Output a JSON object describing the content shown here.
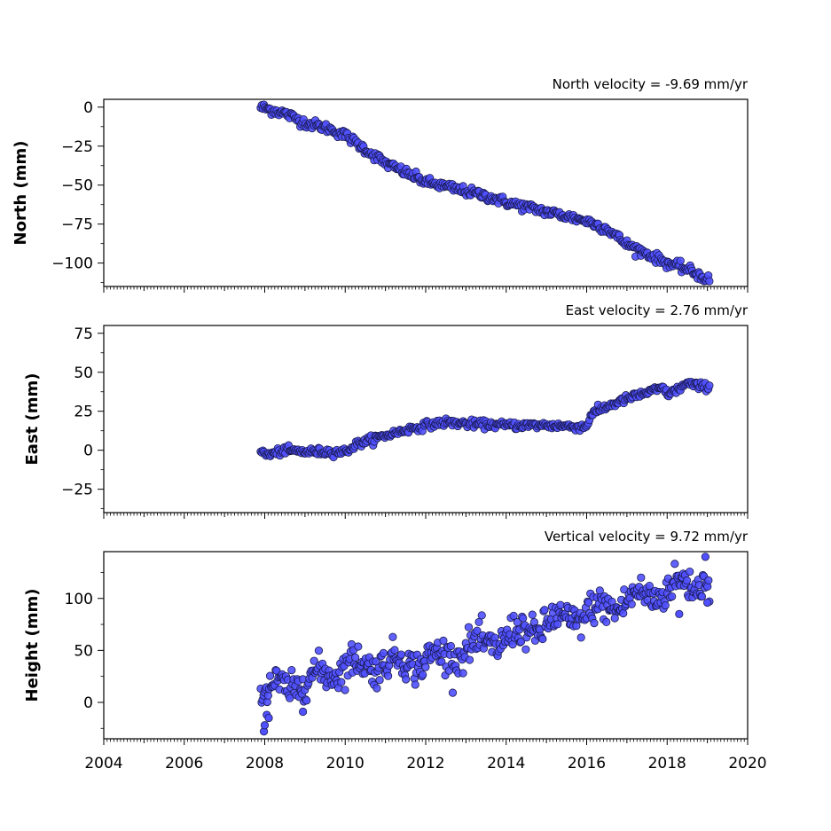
{
  "chart_data": [
    {
      "type": "scatter",
      "panel": "north",
      "title": "North velocity = -9.69 mm/yr",
      "ylabel": "North (mm)",
      "xlim": [
        2004,
        2020
      ],
      "ylim": [
        -115,
        5
      ],
      "yticks": [
        0,
        -25,
        -50,
        -75,
        -100
      ],
      "ytick_labels": [
        "0",
        "−25",
        "−50",
        "−75",
        "−100"
      ],
      "xtick_labels": [],
      "trend": {
        "x": [
          2007.9,
          2008.5,
          2009.0,
          2009.5,
          2010.0,
          2010.5,
          2011.0,
          2011.5,
          2012.0,
          2012.5,
          2013.0,
          2013.5,
          2014.0,
          2014.5,
          2015.0,
          2015.5,
          2016.0,
          2016.5,
          2017.0,
          2017.5,
          2018.0,
          2018.5,
          2019.05
        ],
        "y": [
          0,
          -4,
          -10,
          -13,
          -18,
          -27,
          -36,
          -42,
          -48,
          -51,
          -54,
          -57,
          -61,
          -64,
          -67,
          -70,
          -73,
          -78,
          -88,
          -94,
          -100,
          -104,
          -111
        ]
      },
      "noise": 1.5,
      "points": 420
    },
    {
      "type": "scatter",
      "panel": "east",
      "title": "East velocity = 2.76 mm/yr",
      "ylabel": "East (mm)",
      "xlim": [
        2004,
        2020
      ],
      "ylim": [
        -40,
        80
      ],
      "yticks": [
        75,
        50,
        25,
        0,
        -25
      ],
      "ytick_labels": [
        "75",
        "50",
        "25",
        "0",
        "−25"
      ],
      "xtick_labels": [],
      "trend": {
        "x": [
          2007.9,
          2008.1,
          2008.5,
          2009.0,
          2009.5,
          2010.0,
          2010.3,
          2010.8,
          2011.5,
          2012.0,
          2012.5,
          2013.0,
          2014.0,
          2015.0,
          2015.9,
          2016.0,
          2016.1,
          2016.5,
          2017.0,
          2017.5,
          2017.9,
          2018.0,
          2018.2,
          2018.5,
          2018.8,
          2019.05
        ],
        "y": [
          -1,
          -3,
          0,
          -1,
          -1,
          -1,
          4,
          8,
          13,
          16,
          18,
          17,
          16,
          16,
          15,
          15,
          23,
          28,
          33,
          37,
          40,
          36,
          38,
          43,
          41,
          41
        ]
      },
      "noise": 1.2,
      "points": 420
    },
    {
      "type": "scatter",
      "panel": "height",
      "title": "Vertical velocity = 9.72 mm/yr",
      "ylabel": "Height (mm)",
      "xlim": [
        2004,
        2020
      ],
      "ylim": [
        -35,
        145
      ],
      "yticks": [
        100,
        50,
        0
      ],
      "ytick_labels": [
        "100",
        "50",
        "0"
      ],
      "xticks": [
        2004,
        2006,
        2008,
        2010,
        2012,
        2014,
        2016,
        2018,
        2020
      ],
      "xtick_labels": [
        "2004",
        "2006",
        "2008",
        "2010",
        "2012",
        "2014",
        "2016",
        "2018",
        "2020"
      ],
      "trend": {
        "x": [
          2007.9,
          2008.5,
          2009.0,
          2009.5,
          2010.0,
          2011.0,
          2012.0,
          2013.0,
          2014.0,
          2015.0,
          2016.0,
          2017.0,
          2018.0,
          2018.5,
          2019.05
        ],
        "y": [
          10,
          15,
          20,
          28,
          35,
          38,
          40,
          50,
          62,
          75,
          85,
          98,
          108,
          115,
          118
        ]
      },
      "noise": 8,
      "points": 480,
      "outliers": [
        {
          "x": 2007.98,
          "y": -28
        },
        {
          "x": 2008.0,
          "y": -22
        },
        {
          "x": 2008.05,
          "y": -12
        },
        {
          "x": 2008.1,
          "y": -15
        },
        {
          "x": 2008.95,
          "y": -9
        },
        {
          "x": 2018.3,
          "y": 85
        },
        {
          "x": 2019.0,
          "y": 96
        },
        {
          "x": 2018.95,
          "y": 140
        }
      ]
    }
  ],
  "marker_color": "#5050ff",
  "marker_edge_color": "#1a1a50"
}
